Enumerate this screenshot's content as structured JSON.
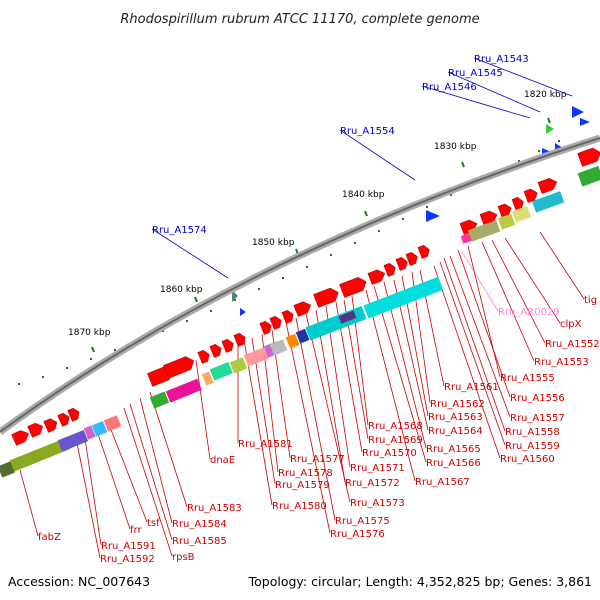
{
  "title": "Rhodospirillum rubrum ATCC 11170, complete genome",
  "footer": {
    "accession": "Accession: NC_007643",
    "topology": "Topology: circular; Length: 4,352,825 bp; Genes: 3,861"
  },
  "kbp_labels": [
    "1820 kbp",
    "1830 kbp",
    "1840 kbp",
    "1850 kbp",
    "1860 kbp",
    "1870 kbp"
  ],
  "colors": {
    "forward_gene": "#ff0000",
    "backbone": "#888888",
    "reverse_label": "#cc0000",
    "forward_label": "#0000cc",
    "rna_label": "#ff88cc"
  },
  "forward_labels": [
    "Rru_A1543",
    "Rru_A1545",
    "Rru_A1546",
    "Rru_A1554",
    "Rru_A1574"
  ],
  "rna_labels": [
    "Rru_AR0029"
  ],
  "reverse_labels": [
    "tig",
    "clpX",
    "Rru_A1552",
    "Rru_A1553",
    "Rru_A1555",
    "Rru_A1556",
    "Rru_A1557",
    "Rru_A1558",
    "Rru_A1559",
    "Rru_A1560",
    "Rru_A1561",
    "Rru_A1562",
    "Rru_A1563",
    "Rru_A1564",
    "Rru_A1565",
    "Rru_A1566",
    "Rru_A1567",
    "Rru_A1568",
    "Rru_A1569",
    "Rru_A1570",
    "Rru_A1571",
    "Rru_A1572",
    "Rru_A1573",
    "Rru_A1575",
    "Rru_A1576",
    "Rru_A1577",
    "Rru_A1578",
    "Rru_A1579",
    "Rru_A1580",
    "Rru_A1581",
    "dnaE",
    "Rru_A1583",
    "Rru_A1584",
    "Rru_A1585",
    "rpsB",
    "tsf",
    "frr",
    "Rru_A1591",
    "Rru_A1592",
    "fabZ"
  ]
}
